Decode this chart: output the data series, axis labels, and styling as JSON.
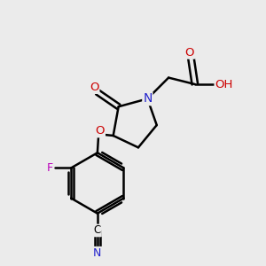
{
  "bg_color": "#ebebeb",
  "bond_color": "#000000",
  "bond_width": 1.8,
  "atom_colors": {
    "O": "#cc0000",
    "N": "#2222cc",
    "F": "#bb00bb",
    "C": "#000000"
  },
  "figsize": [
    3.0,
    3.0
  ],
  "dpi": 100
}
